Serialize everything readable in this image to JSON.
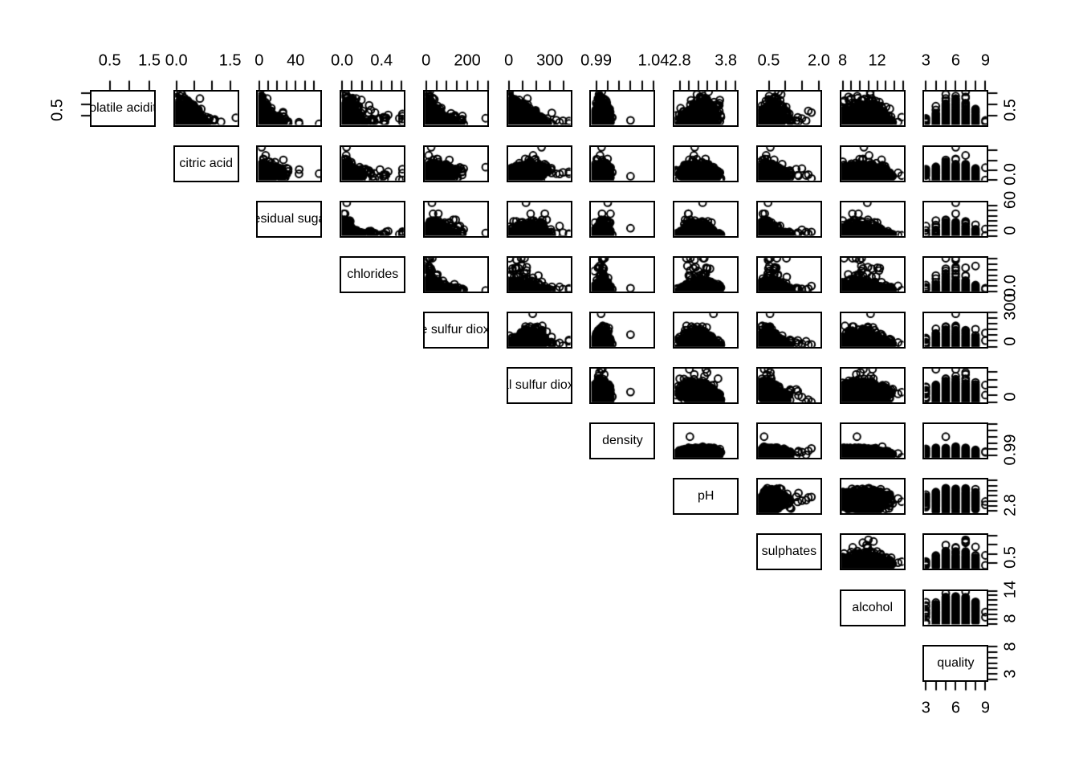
{
  "chart_data": {
    "type": "scatter",
    "subtype": "scatterplot-matrix-upper-triangle",
    "n_points": 2200,
    "seed": 42,
    "point_color": "#000000",
    "variables": [
      {
        "label": "volatile acidity",
        "range": [
          0.02,
          1.64
        ],
        "ticks": [
          0.5,
          1.0,
          1.5
        ],
        "top_labels": [
          {
            "v": 0.5,
            "text": "0.5"
          },
          {
            "v": 1.5,
            "text": "1.5"
          }
        ],
        "right_labels": [
          {
            "v": 0.5,
            "text": "0.5"
          }
        ],
        "left_labels": [
          {
            "v": 0.5,
            "text": "0.5"
          }
        ],
        "dist": {
          "type": "lognormal",
          "mu": -1.139,
          "sigma": 0.5,
          "f1": 0.62,
          "f2": 0,
          "clip": [
            0.08,
            1.58
          ],
          "out_p": 0.003,
          "out_mul": [
            1.5,
            2.2
          ]
        }
      },
      {
        "label": "citric acid",
        "range": [
          -0.0664,
          1.7264
        ],
        "ticks": [
          0.0,
          0.5,
          1.0,
          1.5
        ],
        "top_labels": [
          {
            "v": 0.0,
            "text": "0.0"
          },
          {
            "v": 1.5,
            "text": "1.5"
          }
        ],
        "right_labels": [
          {
            "v": 0.0,
            "text": "0.0"
          }
        ],
        "dist": {
          "type": "normal",
          "mu": 0.32,
          "sigma": 0.17,
          "f1": -0.4,
          "f2": 0.1,
          "clip": [
            0.0,
            1.66
          ],
          "out_p": 0.005,
          "out_mul": [
            2.4,
            4.4
          ]
        }
      },
      {
        "label": "residual sugar",
        "range": [
          -2.008,
          68.408
        ],
        "ticks": [
          0,
          10,
          20,
          30,
          40,
          50,
          60
        ],
        "top_labels": [
          {
            "v": 0,
            "text": "0"
          },
          {
            "v": 40,
            "text": "40"
          }
        ],
        "right_labels": [
          {
            "v": 0,
            "text": "0"
          },
          {
            "v": 60,
            "text": "60"
          }
        ],
        "dist": {
          "type": "lognormal",
          "mu": 1.335,
          "sigma": 0.75,
          "f1": -0.4,
          "f2": 0.5,
          "clip": [
            0.6,
            65.8
          ],
          "out_p": 0.0015,
          "out_mul": [
            4.0,
            8.0
          ]
        }
      },
      {
        "label": "chlorides",
        "range": [
          -0.01508,
          0.63508
        ],
        "ticks": [
          0.0,
          0.1,
          0.2,
          0.3,
          0.4,
          0.5,
          0.6
        ],
        "top_labels": [
          {
            "v": 0.0,
            "text": "0.0"
          },
          {
            "v": 0.4,
            "text": "0.4"
          }
        ],
        "right_labels": [
          {
            "v": 0.0,
            "text": "0.0"
          }
        ],
        "dist": {
          "type": "lognormal",
          "mu": -3.037,
          "sigma": 0.46,
          "f1": 0.55,
          "f2": 0.25,
          "clip": [
            0.009,
            0.611
          ],
          "out_p": 0.03,
          "out_mul": [
            2.0,
            7.0
          ]
        }
      },
      {
        "label": "free sulfur dioxide",
        "range": [
          -10.52,
          300.52
        ],
        "ticks": [
          0,
          50,
          100,
          150,
          200,
          250,
          300
        ],
        "top_labels": [
          {
            "v": 0,
            "text": "0"
          },
          {
            "v": 200,
            "text": "200"
          }
        ],
        "right_labels": [
          {
            "v": 0,
            "text": "0"
          },
          {
            "v": 300,
            "text": "300"
          }
        ],
        "dist": {
          "type": "lognormal",
          "mu": 3.332,
          "sigma": 0.65,
          "f1": -0.5,
          "f2": 0.25,
          "clip": [
            1,
            289
          ],
          "out_p": 0.003,
          "out_mul": [
            2.5,
            4.5
          ]
        }
      },
      {
        "label": "total sulfur dioxide",
        "range": [
          -11.36,
          457.36
        ],
        "ticks": [
          0,
          100,
          200,
          300,
          400
        ],
        "top_labels": [
          {
            "v": 0,
            "text": "0"
          },
          {
            "v": 300,
            "text": "300"
          }
        ],
        "right_labels": [
          {
            "v": 0,
            "text": "0"
          }
        ],
        "dist": {
          "type": "normal",
          "mu": 115,
          "sigma": 58,
          "f1": -0.82,
          "f2": 0.1,
          "clip": [
            6,
            440
          ],
          "out_p": 0.002,
          "out_add": [
            200,
            320
          ]
        }
      },
      {
        "label": "density",
        "range": [
          0.985,
          1.04105
        ],
        "ticks": [
          0.99,
          1.0,
          1.01,
          1.02,
          1.03,
          1.04
        ],
        "top_labels": [
          {
            "v": 0.99,
            "text": "0.99"
          },
          {
            "v": 1.04,
            "text": "1.04"
          }
        ],
        "right_labels": [
          {
            "v": 0.99,
            "text": "0.99"
          }
        ],
        "dist": {
          "type": "normal",
          "mu": 0.9947,
          "sigma": 0.0028,
          "f1": 0.1,
          "f2": 0.72,
          "clip": [
            0.9871,
            1.039
          ],
          "out_p": 0.0025,
          "out_add": [
            0.012,
            0.044
          ]
        }
      },
      {
        "label": "pH",
        "range": [
          2.6684,
          4.0616
        ],
        "ticks": [
          2.8,
          3.0,
          3.2,
          3.4,
          3.6,
          3.8,
          4.0
        ],
        "top_labels": [
          {
            "v": 2.8,
            "text": "2.8"
          },
          {
            "v": 3.8,
            "text": "3.8"
          }
        ],
        "right_labels": [
          {
            "v": 2.8,
            "text": "2.8"
          }
        ],
        "dist": {
          "type": "normal",
          "mu": 3.22,
          "sigma": 0.158,
          "f1": 0.4,
          "f2": 0,
          "clip": [
            2.72,
            4.01
          ],
          "out_p": 0,
          "out_add": [
            0,
            0
          ]
        }
      },
      {
        "label": "sulphates",
        "range": [
          0.1488,
          2.0712
        ],
        "ticks": [
          0.5,
          1.0,
          1.5,
          2.0
        ],
        "top_labels": [
          {
            "v": 0.5,
            "text": "0.5"
          },
          {
            "v": 2.0,
            "text": "2.0"
          }
        ],
        "right_labels": [
          {
            "v": 0.5,
            "text": "0.5"
          }
        ],
        "dist": {
          "type": "lognormal",
          "mu": -0.693,
          "sigma": 0.25,
          "f1": 0.5,
          "f2": 0,
          "clip": [
            0.22,
            2.0
          ],
          "out_p": 0.006,
          "out_mul": [
            1.8,
            3.4
          ]
        }
      },
      {
        "label": "alcohol",
        "range": [
          7.724,
          15.176
        ],
        "ticks": [
          8,
          9,
          10,
          11,
          12,
          13,
          14,
          15
        ],
        "top_labels": [
          {
            "v": 8,
            "text": "8"
          },
          {
            "v": 12,
            "text": "12"
          }
        ],
        "right_labels": [
          {
            "v": 8,
            "text": "8"
          },
          {
            "v": 14,
            "text": "14"
          }
        ],
        "dist": {
          "type": "normal",
          "mu": 10.4,
          "sigma": 1.15,
          "f1": 0,
          "f2": -0.58,
          "clip": [
            8,
            14.9
          ],
          "out_p": 0,
          "out_add": [
            0,
            0
          ]
        }
      },
      {
        "label": "quality",
        "range": [
          2.76,
          9.24
        ],
        "ticks": [
          3,
          4,
          5,
          6,
          7,
          8,
          9
        ],
        "top_labels": [
          {
            "v": 3,
            "text": "3"
          },
          {
            "v": 6,
            "text": "6"
          },
          {
            "v": 9,
            "text": "9"
          }
        ],
        "right_labels": [
          {
            "v": 3,
            "text": "3"
          },
          {
            "v": 8,
            "text": "8"
          }
        ],
        "bottom_labels": [
          {
            "v": 3,
            "text": "3"
          },
          {
            "v": 6,
            "text": "6"
          },
          {
            "v": 9,
            "text": "9"
          }
        ],
        "dist": {
          "type": "discrete",
          "values": [
            3,
            4,
            5,
            6,
            7,
            8,
            9
          ],
          "probs": [
            0.005,
            0.033,
            0.329,
            0.436,
            0.166,
            0.03,
            0.001
          ],
          "f1": 0,
          "f2": -0.25
        }
      }
    ]
  }
}
